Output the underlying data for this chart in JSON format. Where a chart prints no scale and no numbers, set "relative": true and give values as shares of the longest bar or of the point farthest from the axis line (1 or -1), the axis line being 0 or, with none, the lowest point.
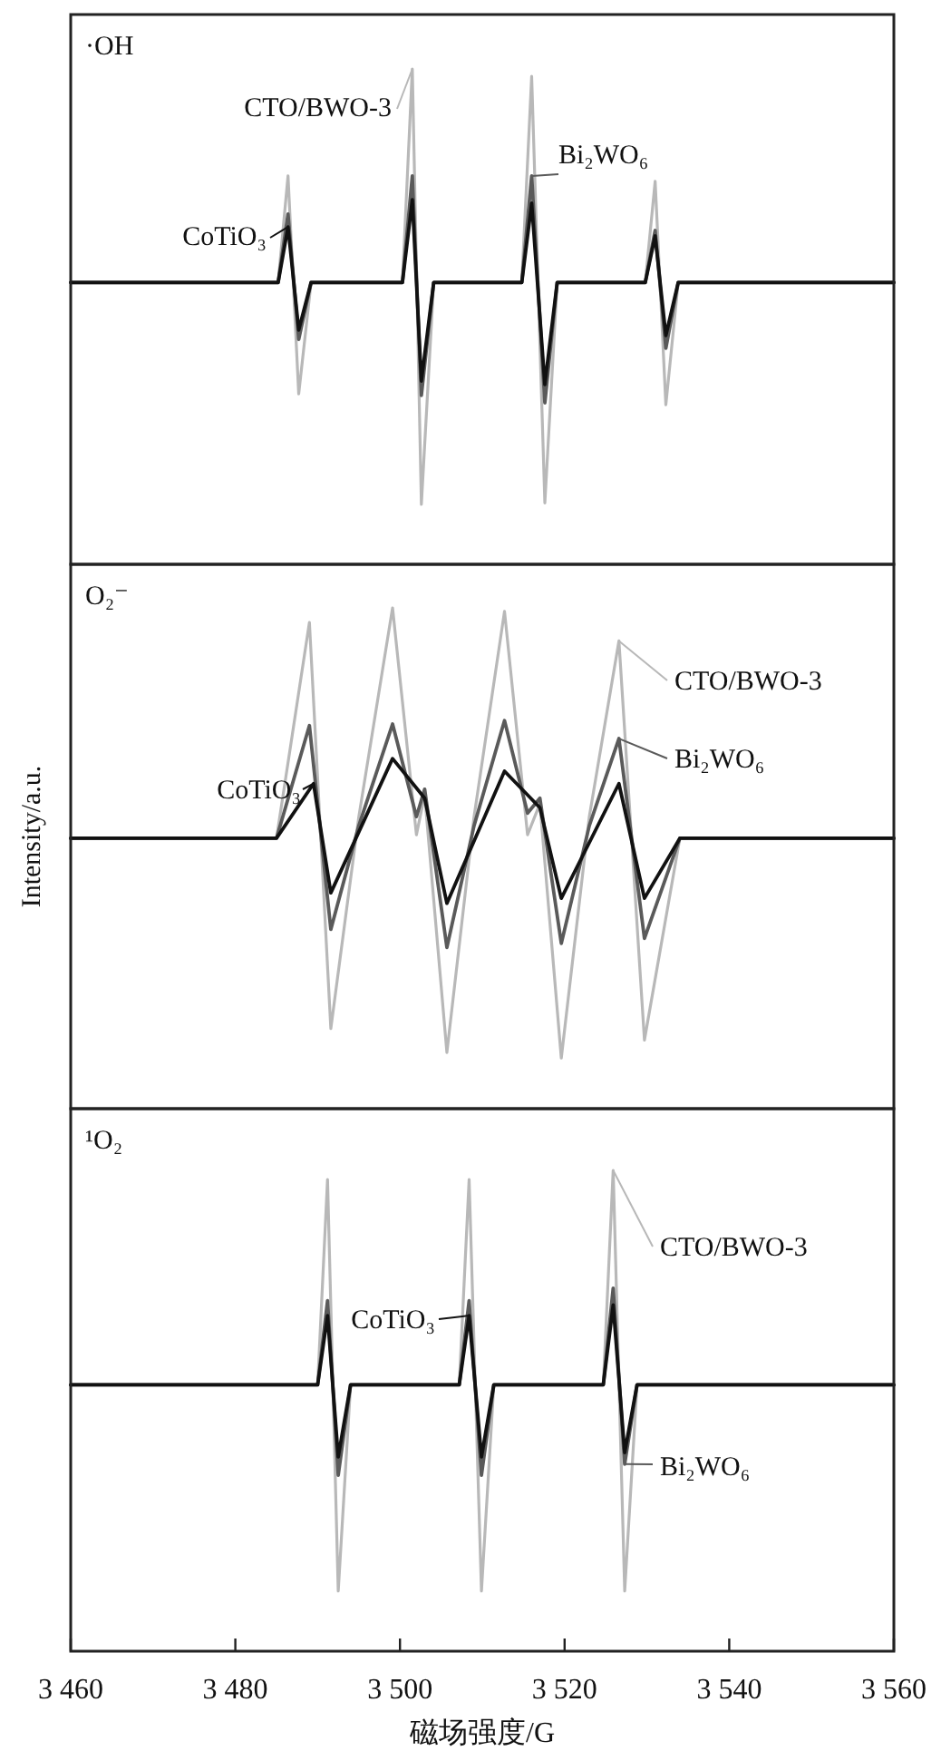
{
  "chart_data": [
    {
      "type": "line",
      "relative": true,
      "title": "·OH",
      "xlim": [
        3460,
        3560
      ],
      "tick_labels": false,
      "series": [
        {
          "name": "CTO/BWO-3",
          "color": "#b8b8b8",
          "x": [
            3460,
            3485.2,
            3486.4,
            3487.7,
            3489.2,
            3500.3,
            3501.5,
            3502.6,
            3504.1,
            3514.8,
            3516.0,
            3517.6,
            3519.1,
            3529.8,
            3531.0,
            3532.3,
            3533.8,
            3560
          ],
          "values": [
            0.569,
            0.569,
            0.784,
            0.344,
            0.569,
            0.569,
            1,
            0.121,
            0.569,
            0.569,
            0.985,
            0.124,
            0.569,
            0.569,
            0.773,
            0.322,
            0.569,
            0.569
          ]
        },
        {
          "name": "Bi₂WO₆",
          "color": "#5a5a5a",
          "x": [
            3460,
            3485.2,
            3486.4,
            3487.7,
            3489.2,
            3500.3,
            3501.5,
            3502.6,
            3504.1,
            3514.8,
            3516.0,
            3517.6,
            3519.1,
            3529.8,
            3531.0,
            3532.3,
            3533.8,
            3560
          ],
          "values": [
            0.569,
            0.569,
            0.707,
            0.454,
            0.569,
            0.569,
            0.784,
            0.341,
            0.569,
            0.569,
            0.784,
            0.326,
            0.569,
            0.569,
            0.674,
            0.436,
            0.569,
            0.569
          ]
        },
        {
          "name": "CoTiO₃",
          "color": "#111111",
          "x": [
            3460,
            3485.2,
            3486.4,
            3487.7,
            3489.2,
            3500.3,
            3501.5,
            3502.6,
            3504.1,
            3514.8,
            3516.0,
            3517.6,
            3519.1,
            3529.8,
            3531.0,
            3532.3,
            3533.8,
            3560
          ],
          "values": [
            0.569,
            0.569,
            0.681,
            0.473,
            0.569,
            0.569,
            0.736,
            0.37,
            0.569,
            0.569,
            0.729,
            0.363,
            0.569,
            0.569,
            0.663,
            0.462,
            0.569,
            0.569
          ]
        }
      ]
    },
    {
      "type": "line",
      "relative": true,
      "title": "O₂⁻",
      "ylabel": "Intensity/a.u.",
      "xlim": [
        3460,
        3560
      ],
      "tick_labels": false,
      "series": [
        {
          "name": "CTO/BWO-3",
          "color": "#b8b8b8",
          "x": [
            3460,
            3485,
            3489,
            3491.6,
            3495,
            3499.1,
            3502,
            3503,
            3505.7,
            3509,
            3512.7,
            3515.5,
            3517,
            3519.6,
            3523,
            3526.6,
            3529.7,
            3534,
            3560
          ],
          "values": [
            0.54,
            0.54,
            0.971,
            0.16,
            0.583,
            1,
            0.547,
            0.627,
            0.112,
            0.583,
            0.993,
            0.547,
            0.609,
            0.101,
            0.583,
            0.934,
            0.137,
            0.54,
            0.54
          ]
        },
        {
          "name": "Bi₂WO₆",
          "color": "#5a5a5a",
          "x": [
            3460,
            3485,
            3489,
            3491.6,
            3495,
            3499.1,
            3502,
            3503,
            3505.7,
            3509,
            3512.7,
            3515.5,
            3517,
            3519.6,
            3523,
            3526.6,
            3529.7,
            3534,
            3560
          ],
          "values": [
            0.54,
            0.54,
            0.765,
            0.358,
            0.565,
            0.768,
            0.583,
            0.638,
            0.322,
            0.565,
            0.775,
            0.59,
            0.62,
            0.33,
            0.565,
            0.739,
            0.34,
            0.54,
            0.54
          ]
        },
        {
          "name": "CoTiO₃",
          "color": "#111111",
          "x": [
            3460,
            3485,
            3489.5,
            3491.6,
            3499.1,
            3503,
            3505.7,
            3512.7,
            3517,
            3519.6,
            3526.6,
            3529.7,
            3534,
            3560
          ],
          "values": [
            0.54,
            0.54,
            0.649,
            0.431,
            0.699,
            0.62,
            0.41,
            0.674,
            0.601,
            0.42,
            0.649,
            0.42,
            0.54,
            0.54
          ]
        }
      ]
    },
    {
      "type": "line",
      "relative": true,
      "title": "¹O₂",
      "xlabel": "磁场强度/G",
      "xlim": [
        3460,
        3560
      ],
      "tick_labels": "x",
      "xticks": [
        {
          "value": 3460,
          "label": "3 460"
        },
        {
          "value": 3480,
          "label": "3 480"
        },
        {
          "value": 3500,
          "label": "3 500"
        },
        {
          "value": 3520,
          "label": "3 520"
        },
        {
          "value": 3540,
          "label": "3 540"
        },
        {
          "value": 3560,
          "label": "3 560"
        }
      ],
      "series": [
        {
          "name": "CTO/BWO-3",
          "color": "#b8b8b8",
          "x": [
            3460,
            3490,
            3491.2,
            3492.5,
            3494,
            3507.2,
            3508.4,
            3509.9,
            3511.4,
            3524.7,
            3525.9,
            3527.3,
            3528.8,
            3560
          ],
          "values": [
            0.554,
            0.554,
            0.981,
            0.125,
            0.554,
            0.554,
            0.981,
            0.125,
            0.554,
            0.554,
            1,
            0.125,
            0.554,
            0.554
          ]
        },
        {
          "name": "Bi₂WO₆",
          "color": "#5a5a5a",
          "x": [
            3460,
            3490,
            3491.2,
            3492.5,
            3494,
            3507.2,
            3508.4,
            3509.9,
            3511.4,
            3524.7,
            3525.9,
            3527.3,
            3528.8,
            3560
          ],
          "values": [
            0.554,
            0.554,
            0.729,
            0.366,
            0.554,
            0.554,
            0.729,
            0.366,
            0.554,
            0.554,
            0.755,
            0.389,
            0.554,
            0.554
          ]
        },
        {
          "name": "CoTiO₃",
          "color": "#111111",
          "x": [
            3460,
            3490,
            3491.2,
            3492.5,
            3494,
            3507.2,
            3508.4,
            3509.9,
            3511.4,
            3524.7,
            3525.9,
            3527.3,
            3528.8,
            3560
          ],
          "values": [
            0.554,
            0.554,
            0.698,
            0.404,
            0.554,
            0.554,
            0.698,
            0.404,
            0.554,
            0.554,
            0.72,
            0.413,
            0.554,
            0.554
          ]
        }
      ]
    }
  ]
}
